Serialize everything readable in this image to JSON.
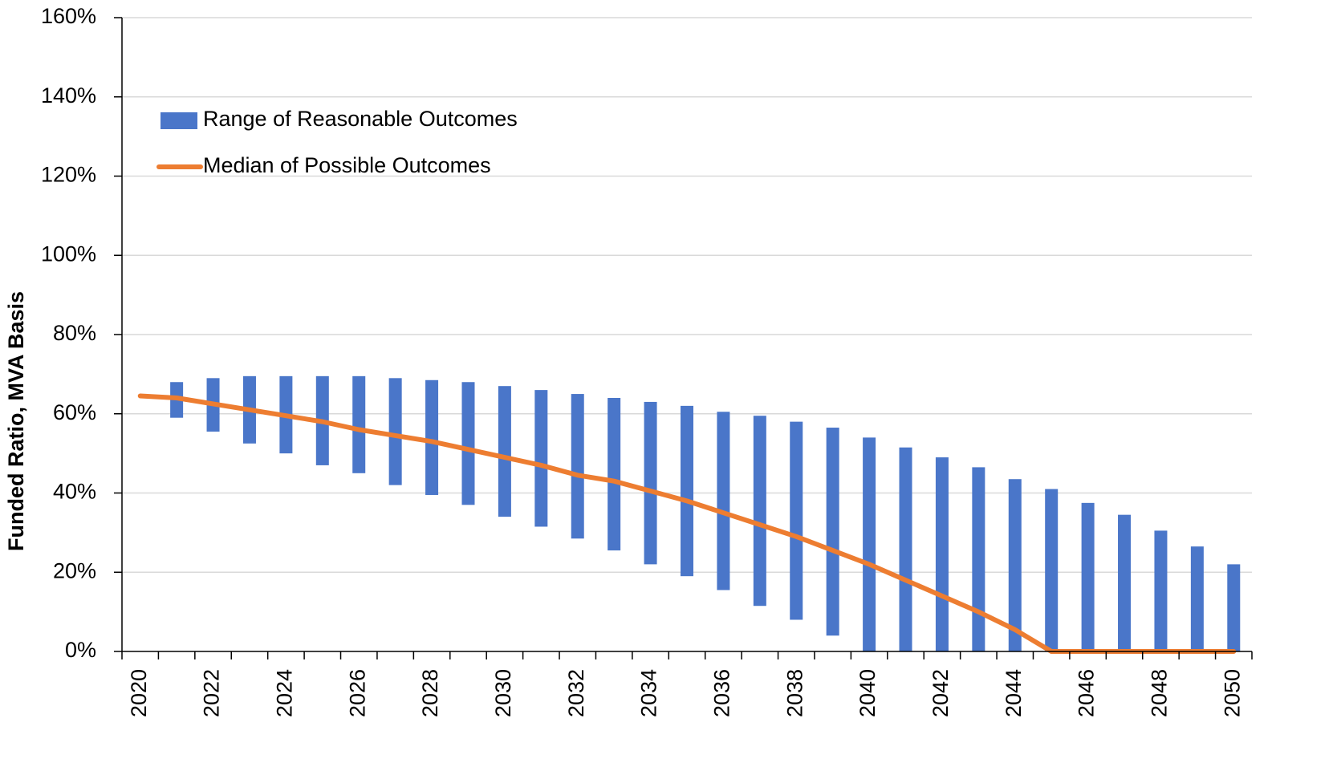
{
  "chart_data": {
    "type": "range-line",
    "y_label": "Funded Ratio, MVA Basis",
    "categories": [
      "2020",
      null,
      "2022",
      null,
      "2024",
      null,
      "2026",
      null,
      "2028",
      null,
      "2030",
      null,
      "2032",
      null,
      "2034",
      null,
      "2036",
      null,
      "2038",
      null,
      "2040",
      null,
      "2042",
      null,
      "2044",
      null,
      "2046",
      null,
      "2048",
      null,
      "2050"
    ],
    "series": [
      {
        "name": "Range of Reasonable Outcomes",
        "type": "range",
        "color": "#4a76c9",
        "low": [
          null,
          59,
          55.5,
          52.5,
          50,
          47,
          45,
          42,
          39.5,
          37,
          34,
          31.5,
          28.5,
          25.5,
          22,
          19,
          15.5,
          11.5,
          8,
          4,
          0,
          0,
          0,
          0,
          0,
          0,
          0,
          0,
          0,
          0,
          0
        ],
        "high": [
          null,
          68,
          69,
          69.5,
          69.5,
          69.5,
          69.5,
          69,
          68.5,
          68,
          67,
          66,
          65,
          64,
          63,
          62,
          60.5,
          59.5,
          58,
          56.5,
          54,
          51.5,
          49,
          46.5,
          43.5,
          41,
          37.5,
          34.5,
          30.5,
          26.5,
          22
        ]
      },
      {
        "name": "Median of Possible Outcomes",
        "type": "line",
        "color": "#ed7d31",
        "values": [
          64.5,
          64,
          62.5,
          61,
          59.5,
          58,
          56,
          54.5,
          53,
          51,
          49,
          47,
          44.5,
          43,
          40.5,
          38,
          35,
          32,
          29,
          25.5,
          22,
          18,
          14,
          10,
          5.5,
          0,
          0,
          0,
          0,
          0,
          0
        ]
      }
    ],
    "ylim": [
      0,
      160
    ],
    "yticks": [
      {
        "value": 0,
        "label": "0%"
      },
      {
        "value": 20,
        "label": "20%"
      },
      {
        "value": 40,
        "label": "40%"
      },
      {
        "value": 60,
        "label": "60%"
      },
      {
        "value": 80,
        "label": "80%"
      },
      {
        "value": 100,
        "label": "100%"
      },
      {
        "value": 120,
        "label": "120%"
      },
      {
        "value": 140,
        "label": "140%"
      },
      {
        "value": 160,
        "label": "160%"
      }
    ],
    "grid": true
  }
}
